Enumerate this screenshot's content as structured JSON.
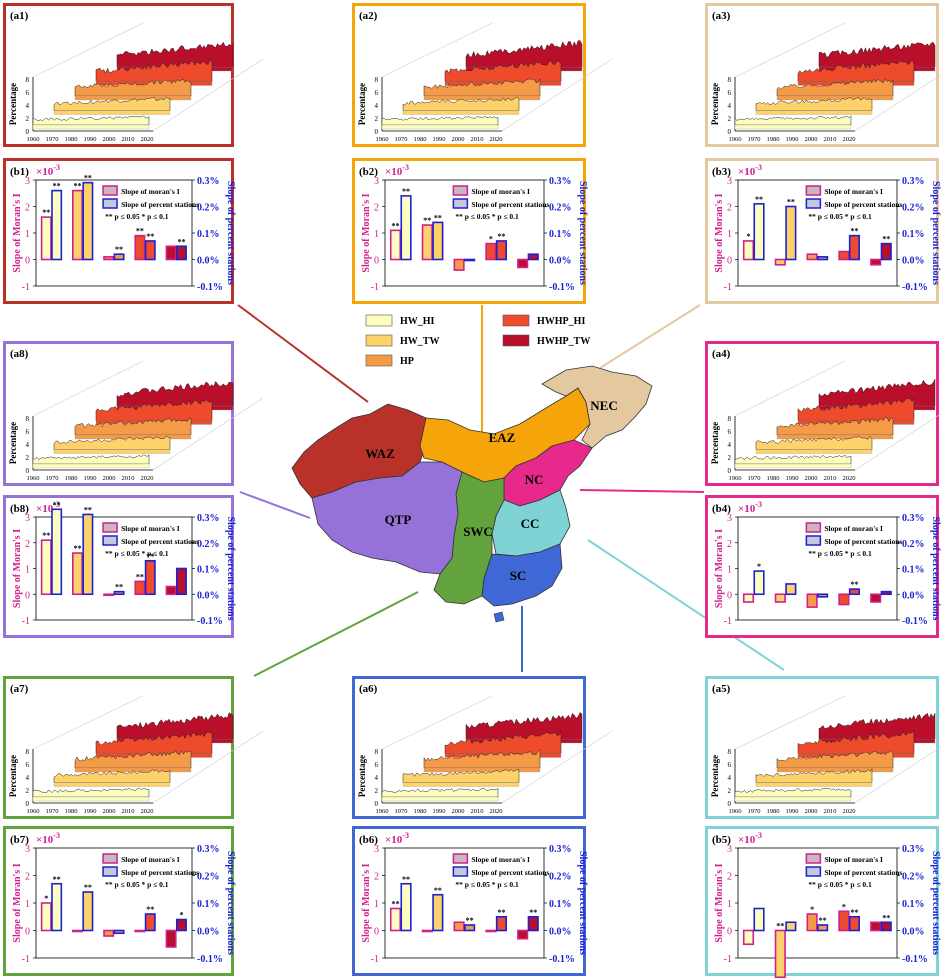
{
  "series_names": [
    "HW_HI",
    "HW_TW",
    "HP",
    "HWHP_HI",
    "HWHP_TW"
  ],
  "series_colors": [
    "#fdfdc0",
    "#fdd26a",
    "#f59b48",
    "#ed4b2c",
    "#b90f2a"
  ],
  "regions": [
    {
      "key": "WAZ",
      "label": "WAZ",
      "color": "#b8322a"
    },
    {
      "key": "EAZ",
      "label": "EAZ",
      "color": "#f5a50a"
    },
    {
      "key": "NEC",
      "label": "NEC",
      "color": "#e3c8a0"
    },
    {
      "key": "NC",
      "label": "NC",
      "color": "#e8298c"
    },
    {
      "key": "CC",
      "label": "CC",
      "color": "#7fd3d5"
    },
    {
      "key": "SC",
      "label": "SC",
      "color": "#3f68d6"
    },
    {
      "key": "SWC",
      "label": "SWC",
      "color": "#62a33d"
    },
    {
      "key": "QTP",
      "label": "QTP",
      "color": "#9571d8"
    }
  ],
  "line_panel": {
    "ylabel": "Percentage",
    "yticks": [
      "0",
      "2",
      "4",
      "6",
      "8"
    ],
    "xticks": [
      "1960",
      "1970",
      "1980",
      "1990",
      "2000",
      "2010",
      "2020"
    ]
  },
  "bar_panel": {
    "exponent_base": "×10",
    "exponent_power": "-3",
    "left_ylabel": "Slope of Moran's I",
    "right_ylabel": "Slope of percent stations",
    "left_ticks": [
      "-1",
      "0",
      "1",
      "2",
      "3"
    ],
    "right_ticks": [
      "-0.1%",
      "0.0%",
      "0.1%",
      "0.2%",
      "0.3%"
    ],
    "legend_moran": "Slope of moran's I",
    "legend_percent": "Slope of percent stations",
    "legend_sig": "** p ≤ 0.05    * p ≤ 0.1"
  },
  "chart_data": [
    {
      "id": "a1",
      "label": "(a1)",
      "type": "area",
      "region": "WAZ",
      "ylim": [
        0,
        8
      ]
    },
    {
      "id": "a2",
      "label": "(a2)",
      "type": "area",
      "region": "EAZ",
      "ylim": [
        0,
        8
      ]
    },
    {
      "id": "a3",
      "label": "(a3)",
      "type": "area",
      "region": "NEC",
      "ylim": [
        0,
        8
      ]
    },
    {
      "id": "a4",
      "label": "(a4)",
      "type": "area",
      "region": "NC",
      "ylim": [
        0,
        8
      ]
    },
    {
      "id": "a5",
      "label": "(a5)",
      "type": "area",
      "region": "CC",
      "ylim": [
        0,
        8
      ]
    },
    {
      "id": "a6",
      "label": "(a6)",
      "type": "area",
      "region": "SC",
      "ylim": [
        0,
        8
      ]
    },
    {
      "id": "a7",
      "label": "(a7)",
      "type": "area",
      "region": "SWC",
      "ylim": [
        0,
        8
      ]
    },
    {
      "id": "a8",
      "label": "(a8)",
      "type": "area",
      "region": "QTP",
      "ylim": [
        0,
        8
      ]
    },
    {
      "id": "b1",
      "label": "(b1)",
      "type": "bar",
      "region": "WAZ",
      "ylim": [
        -1,
        3
      ],
      "moran": [
        1.6,
        2.6,
        0.1,
        0.9,
        0.5
      ],
      "moran_sig": [
        "**",
        "**",
        "",
        "**",
        ""
      ],
      "percent": [
        0.26,
        0.29,
        0.02,
        0.07,
        0.05
      ],
      "percent_sig": [
        "**",
        "**",
        "**",
        "**",
        "**"
      ]
    },
    {
      "id": "b2",
      "label": "(b2)",
      "type": "bar",
      "region": "EAZ",
      "ylim": [
        -1,
        3
      ],
      "moran": [
        1.1,
        1.3,
        -0.4,
        0.6,
        -0.3
      ],
      "moran_sig": [
        "**",
        "**",
        "",
        "*",
        ""
      ],
      "percent": [
        0.24,
        0.14,
        0.0,
        0.07,
        0.02
      ],
      "percent_sig": [
        "**",
        "**",
        "",
        "**",
        ""
      ]
    },
    {
      "id": "b3",
      "label": "(b3)",
      "type": "bar",
      "region": "NEC",
      "ylim": [
        -1,
        3
      ],
      "moran": [
        0.7,
        -0.2,
        0.2,
        0.3,
        -0.2
      ],
      "moran_sig": [
        "*",
        "",
        "",
        "",
        ""
      ],
      "percent": [
        0.21,
        0.2,
        0.01,
        0.09,
        0.06
      ],
      "percent_sig": [
        "**",
        "**",
        "",
        "**",
        "**"
      ]
    },
    {
      "id": "b4",
      "label": "(b4)",
      "type": "bar",
      "region": "NC",
      "ylim": [
        -1,
        3
      ],
      "moran": [
        -0.3,
        -0.3,
        -0.5,
        -0.4,
        -0.3
      ],
      "moran_sig": [
        "",
        "",
        "",
        "",
        ""
      ],
      "percent": [
        0.09,
        0.04,
        -0.01,
        0.02,
        0.01
      ],
      "percent_sig": [
        "*",
        "",
        "",
        "**",
        ""
      ]
    },
    {
      "id": "b5",
      "label": "(b5)",
      "type": "bar",
      "region": "CC",
      "ylim": [
        -1,
        3
      ],
      "moran": [
        -0.5,
        -1.7,
        0.6,
        0.7,
        0.3
      ],
      "moran_sig": [
        "",
        "**",
        "*",
        "*",
        ""
      ],
      "percent": [
        0.08,
        0.03,
        0.02,
        0.05,
        0.03
      ],
      "percent_sig": [
        "",
        "",
        "**",
        "**",
        "**"
      ]
    },
    {
      "id": "b6",
      "label": "(b6)",
      "type": "bar",
      "region": "SC",
      "ylim": [
        -1,
        3
      ],
      "moran": [
        0.8,
        0.0,
        0.3,
        0.0,
        -0.3
      ],
      "moran_sig": [
        "**",
        "",
        "",
        "",
        ""
      ],
      "percent": [
        0.17,
        0.13,
        0.02,
        0.05,
        0.05
      ],
      "percent_sig": [
        "**",
        "**",
        "**",
        "**",
        "**"
      ]
    },
    {
      "id": "b7",
      "label": "(b7)",
      "type": "bar",
      "region": "SWC",
      "ylim": [
        -1,
        3
      ],
      "moran": [
        1.0,
        0.0,
        -0.2,
        0.0,
        -0.6
      ],
      "moran_sig": [
        "*",
        "",
        "",
        "",
        ""
      ],
      "percent": [
        0.17,
        0.14,
        -0.01,
        0.06,
        0.04
      ],
      "percent_sig": [
        "**",
        "**",
        "",
        "**",
        "*"
      ]
    },
    {
      "id": "b8",
      "label": "(b8)",
      "type": "bar",
      "region": "QTP",
      "ylim": [
        -1,
        3
      ],
      "moran": [
        2.1,
        1.6,
        0.0,
        0.5,
        0.3
      ],
      "moran_sig": [
        "**",
        "**",
        "",
        "**",
        ""
      ],
      "percent": [
        0.33,
        0.31,
        0.01,
        0.13,
        0.1
      ],
      "percent_sig": [
        "**",
        "**",
        "**",
        "**",
        ""
      ]
    }
  ]
}
